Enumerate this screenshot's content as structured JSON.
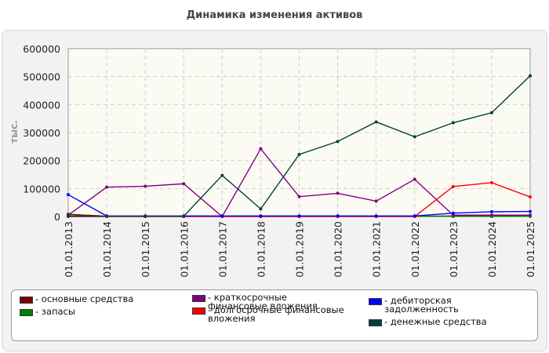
{
  "chart_data": {
    "type": "line",
    "title": "Динамика изменения активов",
    "ylabel": "тыс.",
    "xlabel": "",
    "ylim": [
      0,
      600000
    ],
    "yticks": [
      0,
      100000,
      200000,
      300000,
      400000,
      500000,
      600000
    ],
    "categories": [
      "01.01.2013",
      "01.01.2014",
      "01.01.2015",
      "01.01.2016",
      "01.01.2017",
      "01.01.2018",
      "01.01.2019",
      "01.01.2020",
      "01.01.2021",
      "01.01.2022",
      "01.01.2023",
      "01.01.2024",
      "01.01.2025"
    ],
    "grid": true,
    "legend_position": "bottom",
    "series": [
      {
        "name": "- основные средства",
        "color": "#800000",
        "values": [
          8000,
          1000,
          1000,
          1000,
          1000,
          1000,
          1000,
          1000,
          1000,
          1000,
          2000,
          3000,
          4000
        ]
      },
      {
        "name": "- запасы",
        "color": "#008000",
        "values": [
          3000,
          500,
          500,
          500,
          500,
          500,
          500,
          500,
          500,
          500,
          500,
          500,
          500
        ]
      },
      {
        "name": "- краткосрочные финансовые вложения",
        "color": "#800080",
        "values": [
          5000,
          105000,
          108000,
          117000,
          0,
          242000,
          71000,
          83000,
          55000,
          133000,
          5000,
          5000,
          5000
        ]
      },
      {
        "name": "- долгосрочные финансовые вложения",
        "color": "#ff0000",
        "values": [
          0,
          0,
          0,
          0,
          0,
          0,
          0,
          0,
          0,
          0,
          107000,
          121000,
          70000
        ]
      },
      {
        "name": "- дебиторская задолженность",
        "color": "#0000ff",
        "values": [
          78000,
          2000,
          2000,
          2000,
          2000,
          2000,
          2000,
          2000,
          2000,
          2000,
          12000,
          17000,
          18000
        ]
      },
      {
        "name": "- денежные средства",
        "color": "#004040",
        "values": [
          1000,
          1000,
          1000,
          1000,
          147000,
          27000,
          222000,
          268000,
          338000,
          285000,
          335000,
          371000,
          503000
        ]
      }
    ]
  }
}
